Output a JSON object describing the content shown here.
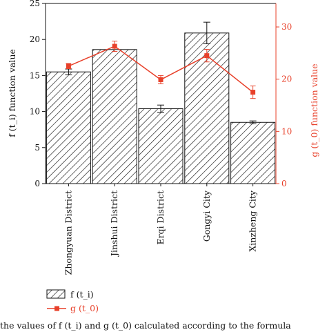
{
  "chart_data": {
    "type": "bar",
    "categories": [
      "Zhongyuan District",
      "Jinshui District",
      "Erqi District",
      "Gongyi City",
      "Xinzheng City"
    ],
    "series": [
      {
        "name": "f (t_i)",
        "type": "bar",
        "axis": "left",
        "values": [
          15.5,
          18.6,
          10.4,
          20.9,
          8.5
        ],
        "errors": [
          0.4,
          0.0,
          0.5,
          1.5,
          0.2
        ]
      },
      {
        "name": "g (t_0)",
        "type": "line",
        "axis": "right",
        "values": [
          22.5,
          26.3,
          19.9,
          24.5,
          17.5
        ],
        "errors": [
          0.5,
          1.0,
          0.8,
          1.2,
          1.2
        ]
      }
    ],
    "left_axis": {
      "label": "f (t_i) function value",
      "ylim": [
        0,
        25
      ],
      "ticks": [
        "0",
        "5",
        "10",
        "15",
        "20",
        "25"
      ]
    },
    "right_axis": {
      "label": "g (t_0) function value",
      "ylim": [
        0,
        34.5
      ],
      "ticks": [
        "0",
        "10",
        "20",
        "30"
      ]
    },
    "legend": {
      "placement": "bottom-left",
      "entries": [
        "f (t_i)",
        "g (t_0)"
      ]
    },
    "grid": false,
    "colors": {
      "bars": "#111111",
      "line": "#e8402a",
      "right_axis": "#e8402a"
    }
  },
  "caption_fragment": "the values of f (t_i) and g (t_0) calculated according to the formula"
}
